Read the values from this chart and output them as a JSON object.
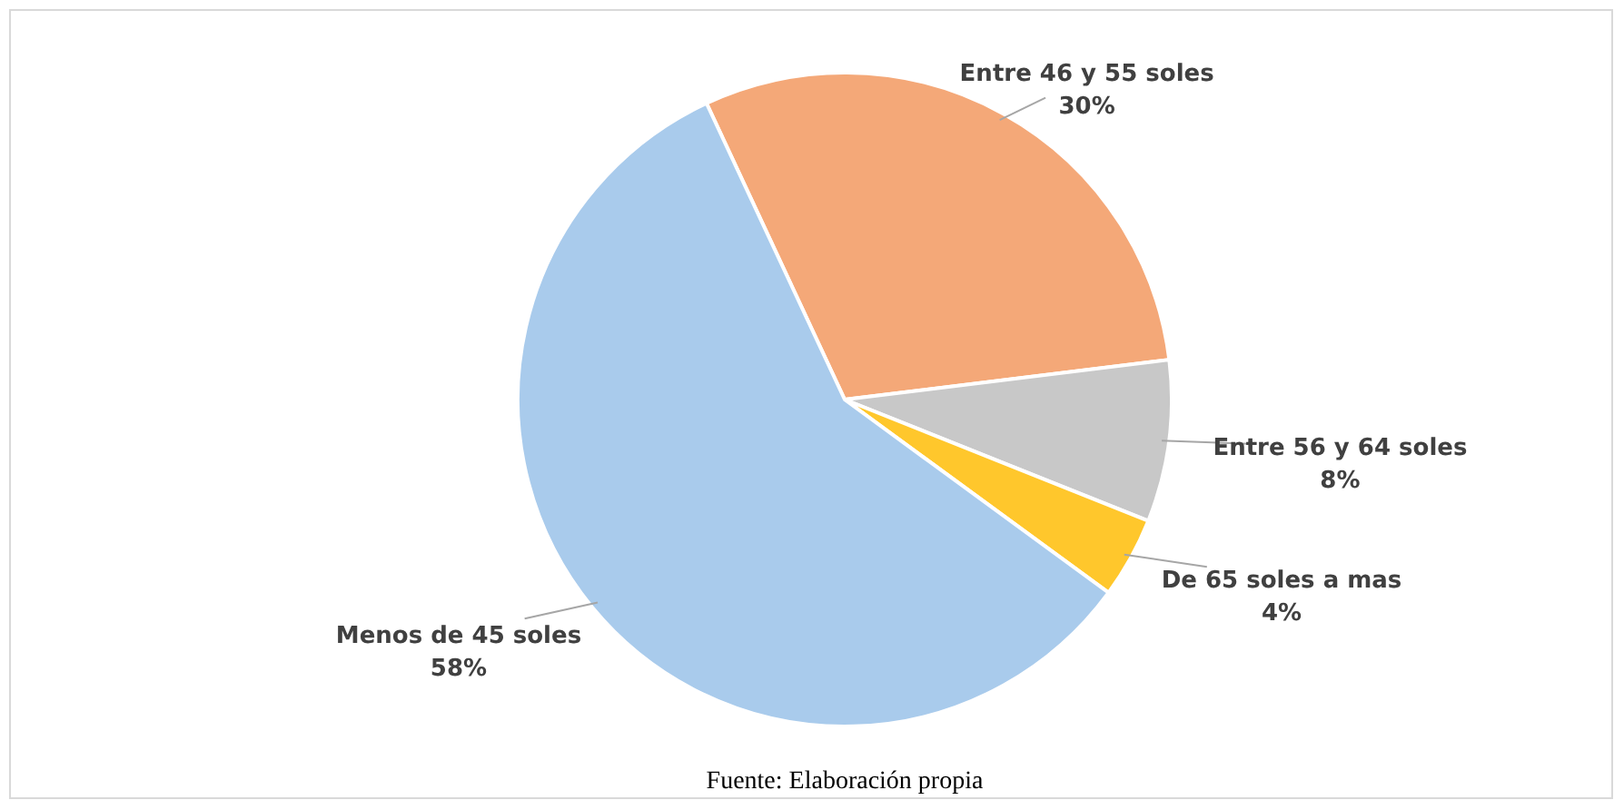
{
  "chart_data": {
    "type": "pie",
    "categories": [
      "Entre 46 y 55 soles",
      "Entre 56 y 64 soles",
      "De 65 soles a mas",
      "Menos de 45 soles"
    ],
    "values": [
      30,
      8,
      4,
      58
    ],
    "colors": [
      "#f4a878",
      "#c8c8c8",
      "#ffc72c",
      "#a9cbec"
    ],
    "value_labels": [
      "30%",
      "8%",
      "4%",
      "58%"
    ],
    "legend": false,
    "annotations": [
      "Fuente: Elaboración propia"
    ]
  }
}
